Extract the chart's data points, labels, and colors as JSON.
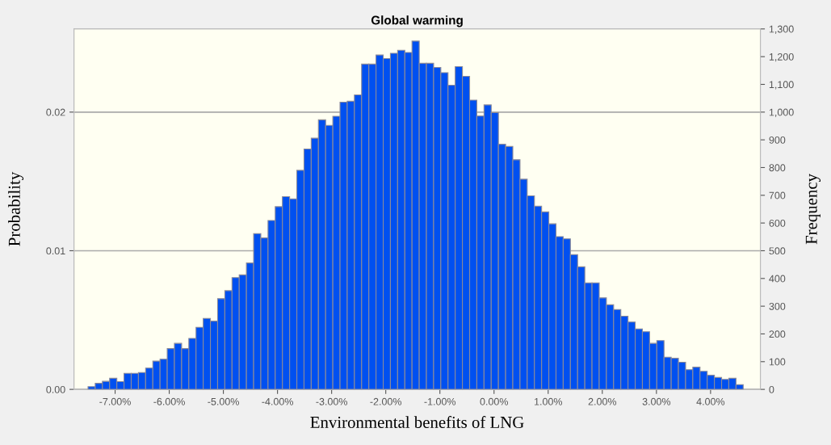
{
  "chart_data": {
    "type": "histogram",
    "title": "Global warming",
    "xlabel": "Environmental benefits of LNG",
    "ylabel": "Probability",
    "y2label": "Frequency",
    "bins": [
      -7.5,
      -7.367,
      -7.234,
      -7.101,
      -6.968,
      -6.835,
      -6.702,
      -6.569,
      -6.436,
      -6.303,
      -6.17,
      -6.037,
      -5.904,
      -5.771,
      -5.638,
      -5.505,
      -5.372,
      -5.239,
      -5.106,
      -4.973,
      -4.84,
      -4.707,
      -4.574,
      -4.441,
      -4.308,
      -4.175,
      -4.042,
      -3.909,
      -3.776,
      -3.643,
      -3.51,
      -3.377,
      -3.244,
      -3.111,
      -2.978,
      -2.845,
      -2.712,
      -2.579,
      -2.446,
      -2.313,
      -2.18,
      -2.047,
      -1.914,
      -1.781,
      -1.648,
      -1.515,
      -1.382,
      -1.249,
      -1.116,
      -0.983,
      -0.85,
      -0.717,
      -0.584,
      -0.451,
      -0.318,
      -0.185,
      -0.052,
      0.081,
      0.214,
      0.347,
      0.48,
      0.613,
      0.746,
      0.879,
      1.012,
      1.145,
      1.278,
      1.411,
      1.544,
      1.677,
      1.81,
      1.943,
      2.076,
      2.209,
      2.342,
      2.475,
      2.608,
      2.741,
      2.874,
      3.007,
      3.14,
      3.273,
      3.406,
      3.539,
      3.672,
      3.805,
      3.938,
      4.071,
      4.204,
      4.337,
      4.47,
      4.603
    ],
    "series": [
      {
        "color": "#0050f0",
        "axis": "y2",
        "values": [
          10,
          22,
          29,
          40,
          28,
          58,
          58,
          61,
          77,
          102,
          109,
          147,
          166,
          147,
          184,
          224,
          256,
          246,
          327,
          356,
          403,
          413,
          456,
          562,
          546,
          609,
          659,
          695,
          687,
          790,
          867,
          906,
          972,
          952,
          985,
          1036,
          1039,
          1062,
          1173,
          1173,
          1206,
          1193,
          1212,
          1223,
          1215,
          1256,
          1176,
          1176,
          1161,
          1142,
          1097,
          1164,
          1129,
          1043,
          986,
          1026,
          998,
          884,
          876,
          828,
          758,
          698,
          661,
          640,
          597,
          551,
          543,
          486,
          442,
          384,
          384,
          330,
          305,
          288,
          264,
          243,
          218,
          208,
          166,
          176,
          116,
          112,
          98,
          71,
          80,
          65,
          51,
          43,
          36,
          40,
          17
        ]
      }
    ],
    "xlim": [
      -7.76,
      4.92
    ],
    "xticks": [
      {
        "value": -7,
        "label": "-7.00%"
      },
      {
        "value": -6,
        "label": "-6.00%"
      },
      {
        "value": -5,
        "label": "-5.00%"
      },
      {
        "value": -4,
        "label": "-4.00%"
      },
      {
        "value": -3,
        "label": "-3.00%"
      },
      {
        "value": -2,
        "label": "-2.00%"
      },
      {
        "value": -1,
        "label": "-1.00%"
      },
      {
        "value": 0,
        "label": "0.00%"
      },
      {
        "value": 1,
        "label": "1.00%"
      },
      {
        "value": 2,
        "label": "2.00%"
      },
      {
        "value": 3,
        "label": "3.00%"
      },
      {
        "value": 4,
        "label": "4.00%"
      }
    ],
    "ylim": [
      0,
      0.026
    ],
    "yticks": [
      {
        "value": 0,
        "label": "0.00"
      },
      0.01,
      0.02
    ],
    "y2lim": [
      0,
      1300
    ],
    "y2ticks": [
      0,
      100,
      200,
      300,
      400,
      500,
      600,
      700,
      800,
      900,
      {
        "value": 1000,
        "label": "1,000"
      },
      {
        "value": 1100,
        "label": "1,100"
      },
      {
        "value": 1200,
        "label": "1,200"
      },
      {
        "value": 1300,
        "label": "1,300"
      }
    ],
    "grid": "y"
  }
}
